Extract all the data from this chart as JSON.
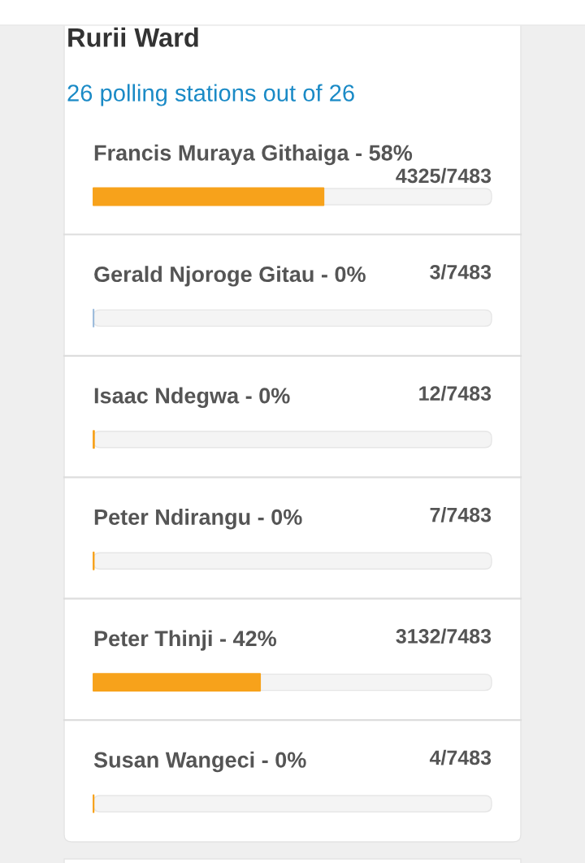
{
  "chart_data": {
    "type": "bar",
    "orientation": "horizontal",
    "title": "Rurii Ward",
    "subtitle": "26 polling stations out of 26",
    "categories": [
      "Francis Muraya Githaiga - 58%",
      "Gerald Njoroge Gitau - 0%",
      "Isaac Ndegwa - 0%",
      "Peter Ndirangu - 0%",
      "Peter Thinji - 42%",
      "Susan Wangeci - 0%"
    ],
    "values": [
      4325,
      3,
      12,
      7,
      3132,
      4
    ],
    "value_labels": [
      "4325/7483",
      "3/7483",
      "12/7483",
      "7/7483",
      "3132/7483",
      "4/7483"
    ],
    "colors": [
      "#f7a21b",
      "#9dbcdc",
      "#f7a21b",
      "#f7a21b",
      "#f7a21b",
      "#f7a21b"
    ],
    "xlim": [
      0,
      7483
    ],
    "tick_labels": "y"
  }
}
